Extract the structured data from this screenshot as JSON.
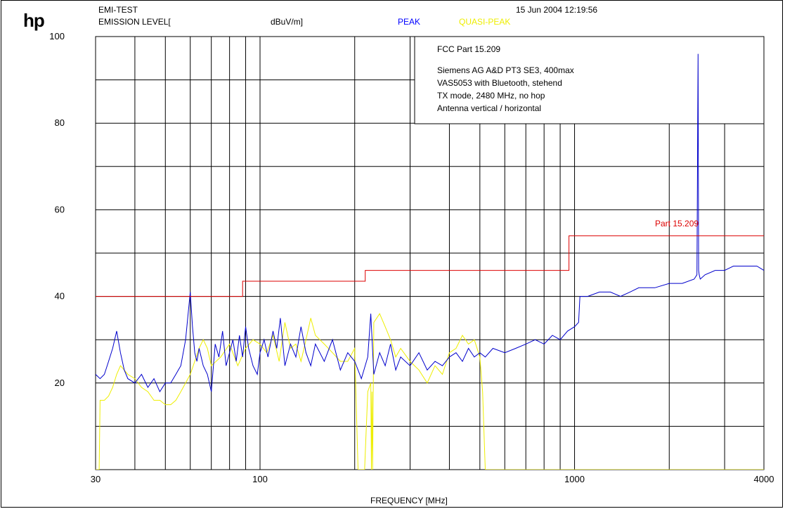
{
  "header": {
    "logo": "hp",
    "test_name": "EMI-TEST",
    "datetime": "15 Jun 2004  12:19:56",
    "emission_label": "EMISSION LEVEL[",
    "unit_label": "dBuV/m]",
    "peak_label": "PEAK",
    "qp_label": "QUASI-PEAK"
  },
  "info_box": {
    "line1": "FCC Part 15.209",
    "line2": "Siemens AG A&D PT3 SE3,  400max",
    "line3": "VAS5053 with Bluetooth, stehend",
    "line4": "TX mode, 2480 MHz, no hop",
    "line5": "Antenna vertical / horizontal"
  },
  "colors": {
    "peak": "#0000cc",
    "quasi_peak": "#eeee00",
    "limit": "#dd0000",
    "grid": "#000000"
  },
  "chart_data": {
    "type": "line",
    "title": "",
    "xlabel": "FREQUENCY [MHz]",
    "ylabel": "EMISSION LEVEL[dBuV/m]",
    "x_scale": "log",
    "xlim": [
      30,
      4000
    ],
    "ylim": [
      0,
      100
    ],
    "x_ticks": [
      30,
      100,
      1000,
      4000
    ],
    "y_ticks": [
      20,
      40,
      60,
      80,
      100
    ],
    "grid": true,
    "limit_label": "Part 15.209",
    "series": [
      {
        "name": "PEAK",
        "x": [
          30,
          31,
          32,
          33,
          34,
          35,
          36,
          37,
          38,
          40,
          42,
          44,
          46,
          48,
          50,
          52,
          54,
          56,
          58,
          60,
          61,
          62,
          63,
          64,
          66,
          68,
          70,
          72,
          74,
          76,
          78,
          80,
          82,
          84,
          86,
          88,
          90,
          92,
          95,
          98,
          100,
          103,
          106,
          110,
          113,
          116,
          120,
          125,
          130,
          135,
          140,
          145,
          150,
          160,
          170,
          180,
          190,
          200,
          210,
          220,
          225,
          230,
          240,
          250,
          260,
          270,
          280,
          300,
          320,
          340,
          360,
          380,
          400,
          420,
          440,
          460,
          480,
          500,
          520,
          550,
          600,
          650,
          700,
          750,
          800,
          850,
          900,
          950,
          1000,
          1030,
          1040,
          1050,
          1100,
          1200,
          1300,
          1400,
          1500,
          1600,
          1800,
          2000,
          2200,
          2400,
          2450,
          2470,
          2480,
          2490,
          2510,
          2600,
          2800,
          3000,
          3200,
          3500,
          3800,
          4000,
          4200
        ],
        "values": [
          22,
          21,
          22,
          25,
          28,
          32,
          27,
          23,
          21,
          20,
          22,
          19,
          21,
          18,
          20,
          20,
          22,
          24,
          30,
          41,
          33,
          27,
          25,
          28,
          24,
          22,
          18,
          29,
          26,
          32,
          24,
          27,
          30,
          25,
          31,
          26,
          33,
          28,
          24,
          22,
          27,
          30,
          26,
          32,
          28,
          35,
          24,
          29,
          26,
          33,
          27,
          24,
          29,
          25,
          30,
          23,
          27,
          25,
          21,
          26,
          36,
          22,
          27,
          24,
          29,
          23,
          26,
          24,
          27,
          23,
          25,
          24,
          26,
          27,
          25,
          28,
          26,
          27,
          26,
          28,
          27,
          28,
          29,
          30,
          29,
          31,
          30,
          32,
          33,
          34,
          40,
          40,
          40,
          41,
          41,
          40,
          41,
          42,
          42,
          43,
          43,
          44,
          45,
          96,
          46,
          45,
          44,
          45,
          46,
          46,
          47,
          47,
          47,
          46,
          46
        ]
      },
      {
        "name": "QUASI-PEAK",
        "x": [
          30,
          30.8,
          31,
          32,
          33,
          34,
          35,
          36,
          37,
          38,
          40,
          42,
          44,
          46,
          48,
          50,
          52,
          54,
          56,
          58,
          60,
          62,
          64,
          66,
          68,
          70,
          75,
          80,
          85,
          90,
          95,
          100,
          105,
          110,
          115,
          120,
          125,
          130,
          135,
          140,
          145,
          150,
          160,
          170,
          180,
          190,
          200,
          205,
          206,
          207,
          210,
          215,
          220,
          225,
          226,
          227,
          228,
          230,
          240,
          250,
          260,
          270,
          280,
          300,
          320,
          340,
          360,
          380,
          400,
          420,
          440,
          460,
          480,
          500,
          510,
          520,
          550,
          600,
          700,
          800,
          1000,
          2000,
          4200
        ],
        "values": [
          0,
          0,
          16,
          16,
          17,
          19,
          22,
          24,
          23,
          22,
          21,
          19,
          18,
          16,
          16,
          15,
          15,
          16,
          18,
          20,
          22,
          25,
          28,
          30,
          28,
          24,
          26,
          29,
          24,
          28,
          30,
          29,
          27,
          31,
          25,
          34,
          28,
          29,
          25,
          30,
          35,
          31,
          29,
          27,
          25,
          25,
          28,
          0,
          0,
          0,
          0,
          0,
          18,
          20,
          0,
          18,
          0,
          34,
          36,
          33,
          30,
          26,
          28,
          25,
          23,
          20,
          24,
          22,
          27,
          28,
          31,
          29,
          30,
          26,
          18,
          0,
          0,
          0,
          0,
          0,
          0,
          0,
          0
        ]
      },
      {
        "name": "Part 15.209",
        "x": [
          30,
          88,
          88,
          216,
          216,
          960,
          960,
          4200
        ],
        "values": [
          40,
          40,
          43.5,
          43.5,
          46,
          46,
          54,
          54
        ]
      }
    ]
  },
  "x_tick_labels": [
    "30",
    "100",
    "1000",
    "4000"
  ],
  "y_tick_labels": [
    "20",
    "40",
    "60",
    "80",
    "100"
  ]
}
